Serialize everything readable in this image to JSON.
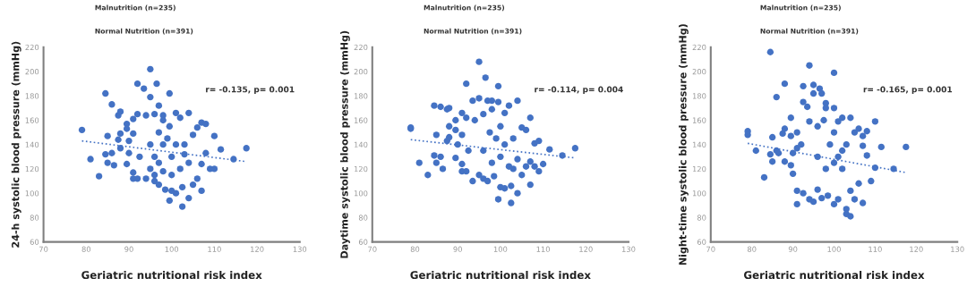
{
  "chart_data": [
    {
      "type": "scatter",
      "xlabel": "Geriatric nutritional risk index",
      "ylabel": "24-h systolic blood pressure (mmHg)",
      "annotations": [
        "Malnutrition (n=235)",
        "Normal Nutrition (n=391)",
        "r= -0.135, p= 0.001"
      ],
      "xlim": [
        70,
        130
      ],
      "xticks": [
        70,
        80,
        90,
        100,
        110,
        120,
        130
      ],
      "ylim": [
        60,
        220
      ],
      "yticks": [
        60,
        80,
        100,
        120,
        140,
        160,
        180,
        200,
        220
      ],
      "grid": false,
      "series": [
        {
          "marker": "circle",
          "color": "#4472c4",
          "x": [
            79,
            81,
            83,
            84.5,
            85,
            85,
            84.5,
            86,
            86,
            86.5,
            87.5,
            88,
            87.5,
            88,
            88,
            89.5,
            89.5,
            89.5,
            90,
            90,
            91,
            91,
            91,
            91,
            92,
            92,
            92,
            92.5,
            93.5,
            94,
            94,
            95,
            95,
            95,
            96,
            96,
            96.5,
            97,
            97,
            97,
            98,
            98,
            98,
            98.5,
            99.5,
            99.5,
            99.5,
            100,
            100,
            101,
            101,
            101,
            102,
            102,
            102.5,
            102.5,
            103,
            104,
            104,
            104,
            105,
            105,
            106,
            106,
            107,
            107,
            107,
            108,
            108,
            109,
            110,
            110,
            111.5,
            114.5,
            117.5,
            95,
            96,
            97,
            99,
            100,
            103,
            96,
            98
          ],
          "values": [
            152,
            128,
            114,
            182,
            147,
            125,
            132,
            173,
            133,
            123,
            164,
            167,
            144,
            149,
            137,
            157,
            153,
            124,
            143,
            133,
            161,
            149,
            117,
            112,
            165,
            190,
            112,
            130,
            186,
            164,
            112,
            202,
            179,
            120,
            165,
            110,
            190,
            172,
            107,
            150,
            164,
            140,
            118,
            103,
            182,
            155,
            94,
            102,
            130,
            166,
            100,
            140,
            162,
            120,
            105,
            89,
            140,
            166,
            96,
            125,
            148,
            107,
            154,
            112,
            158,
            102,
            124,
            157,
            133,
            120,
            147,
            120,
            136,
            128,
            137,
            140,
            130,
            125,
            145,
            115,
            132,
            115,
            160
          ]
        },
        {
          "type": "line",
          "marker": "none",
          "line_style": "dotted",
          "color": "#4472c4",
          "x": [
            79,
            117.5
          ],
          "values": [
            143,
            126
          ]
        }
      ]
    },
    {
      "type": "scatter",
      "xlabel": "Geriatric nutritional risk index",
      "ylabel": "Daytime systolic blood pressure (mmHg)",
      "annotations": [
        "Malnutrition (n=235)",
        "Normal Nutrition (n=391)",
        "r= -0.114, p= 0.004"
      ],
      "xlim": [
        70,
        130
      ],
      "xticks": [
        70,
        80,
        90,
        100,
        110,
        120,
        130
      ],
      "ylim": [
        60,
        220
      ],
      "yticks": [
        60,
        80,
        100,
        120,
        140,
        160,
        180,
        200,
        220
      ],
      "grid": false,
      "series": [
        {
          "marker": "circle",
          "color": "#4472c4",
          "x": [
            79,
            79,
            81,
            83,
            84.5,
            84.5,
            85,
            85,
            86,
            86,
            86.5,
            87.5,
            88,
            87.5,
            88,
            88,
            89.5,
            89.5,
            89.5,
            90,
            91,
            91,
            91,
            91,
            92,
            92,
            92,
            92.5,
            93.5,
            93.5,
            94,
            95,
            95,
            95,
            96,
            96,
            96.5,
            97,
            97,
            97.5,
            98,
            98,
            98.5,
            99.5,
            99.5,
            99.5,
            100,
            100,
            101,
            101,
            101,
            102,
            102,
            102.5,
            102.5,
            103,
            104,
            104,
            104,
            105,
            105,
            106,
            106,
            107,
            107,
            107,
            108,
            108,
            109,
            109,
            110,
            111.5,
            114.5,
            117.5,
            96,
            98,
            99,
            100,
            103
          ],
          "values": [
            154,
            153,
            125,
            115,
            172,
            131,
            148,
            125,
            171,
            130,
            120,
            169,
            170,
            143,
            155,
            146,
            160,
            152,
            129,
            140,
            166,
            148,
            124,
            118,
            190,
            162,
            118,
            135,
            176,
            110,
            160,
            208,
            178,
            115,
            165,
            112,
            195,
            176,
            110,
            150,
            176,
            169,
            114,
            188,
            175,
            95,
            105,
            155,
            166,
            104,
            140,
            172,
            122,
            106,
            92,
            145,
            176,
            100,
            128,
            154,
            115,
            152,
            122,
            162,
            107,
            126,
            141,
            122,
            143,
            118,
            124,
            136,
            131,
            137,
            135,
            125,
            145,
            130,
            120
          ]
        },
        {
          "type": "line",
          "marker": "none",
          "line_style": "dotted",
          "color": "#4472c4",
          "x": [
            79,
            117.5
          ],
          "values": [
            144,
            129
          ]
        }
      ]
    },
    {
      "type": "scatter",
      "xlabel": "Geriatric nutritional risk index",
      "ylabel": "Night-time systolic blood pressure (mmHg)",
      "annotations": [
        "Malnutrition (n=235)",
        "Normal Nutrition (n=391)",
        "r= -0.165, p= 0.001"
      ],
      "xlim": [
        70,
        130
      ],
      "xticks": [
        70,
        80,
        90,
        100,
        110,
        120,
        130
      ],
      "ylim": [
        60,
        220
      ],
      "yticks": [
        60,
        80,
        100,
        120,
        140,
        160,
        180,
        200,
        220
      ],
      "grid": false,
      "series": [
        {
          "marker": "circle",
          "color": "#4472c4",
          "x": [
            79,
            79,
            81,
            83,
            84.5,
            84.5,
            85,
            85,
            86,
            86,
            86.5,
            88,
            87.5,
            88,
            88,
            89.5,
            89.5,
            89.5,
            90,
            90,
            91,
            91,
            91,
            91,
            92,
            92.5,
            92.5,
            92.5,
            93.5,
            94,
            94,
            94,
            95,
            95,
            95,
            96,
            96,
            96.5,
            97,
            97,
            97.5,
            98,
            98,
            98.5,
            100,
            100,
            100,
            100,
            101,
            101,
            101,
            102,
            102,
            103,
            103,
            103,
            104,
            104,
            104,
            105,
            105,
            106,
            106,
            107,
            107,
            107,
            108,
            108,
            109,
            110,
            110,
            111.5,
            114.5,
            117.5,
            96,
            98,
            99,
            100,
            102
          ],
          "values": [
            151,
            148,
            135,
            113,
            216,
            132,
            146,
            126,
            179,
            135,
            133,
            190,
            149,
            153,
            126,
            162,
            147,
            123,
            116,
            133,
            150,
            137,
            102,
            91,
            140,
            188,
            175,
            100,
            171,
            205,
            95,
            159,
            189,
            182,
            93,
            155,
            103,
            186,
            182,
            96,
            160,
            174,
            170,
            98,
            199,
            170,
            91,
            150,
            159,
            95,
            130,
            162,
            120,
            87,
            83,
            140,
            162,
            81,
            102,
            150,
            95,
            153,
            108,
            147,
            92,
            139,
            151,
            131,
            110,
            121,
            159,
            138,
            120,
            138,
            130,
            120,
            140,
            125,
            135
          ]
        },
        {
          "type": "line",
          "marker": "none",
          "line_style": "dotted",
          "color": "#4472c4",
          "x": [
            79,
            117.5
          ],
          "values": [
            141,
            117
          ]
        }
      ]
    }
  ]
}
